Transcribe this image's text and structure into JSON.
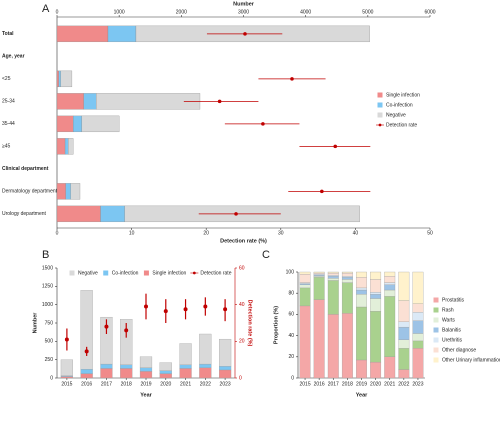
{
  "chart_data": [
    {
      "type": "hbar",
      "panel_label": "A",
      "legend": "right",
      "xlabel": "Number",
      "xlim": [
        0,
        6000
      ],
      "xticks": [
        0,
        1000,
        2000,
        3000,
        4000,
        5000,
        6000
      ],
      "x2label": "Detection rate (%)",
      "x2lim": [
        0,
        50
      ],
      "x2ticks": [
        0,
        10,
        20,
        30,
        40,
        50
      ],
      "categories": [
        "Total",
        "Age, year",
        "<25",
        "25-34",
        "35-44",
        "≥45",
        "Clinical department",
        "Dermatology department",
        "Urology department"
      ],
      "series": [
        {
          "name": "Single infection",
          "color": "#f08a8a",
          "values": [
            820,
            null,
            30,
            430,
            260,
            130,
            null,
            140,
            700
          ]
        },
        {
          "name": "Co-infection",
          "color": "#7cc6f2",
          "values": [
            450,
            null,
            30,
            200,
            140,
            50,
            null,
            80,
            390
          ]
        },
        {
          "name": "Negative",
          "color": "#d9d9d9",
          "values": [
            3760,
            null,
            180,
            1670,
            600,
            80,
            null,
            150,
            3780
          ]
        },
        {
          "name": "Detection rate",
          "type": "errorbar",
          "axis": "x2",
          "color": "#c00000",
          "values": [
            25.2,
            null,
            31.5,
            21.8,
            27.6,
            37.3,
            null,
            35.5,
            24
          ],
          "lower": [
            20.1,
            null,
            27,
            17,
            22.5,
            32.5,
            null,
            31,
            19
          ],
          "upper": [
            30.2,
            null,
            36,
            27,
            32.5,
            42,
            null,
            42,
            30
          ]
        }
      ]
    },
    {
      "type": "bar",
      "panel_label": "B",
      "legend": "top",
      "stack_reversed": true,
      "xlabel": "Year",
      "ylabel": "Number",
      "ylim": [
        0,
        1500
      ],
      "yticks": [
        0,
        250,
        500,
        750,
        1000,
        1250,
        1500
      ],
      "y2label": "Detection rate (%)",
      "y2lim": [
        0,
        60
      ],
      "y2ticks": [
        0,
        20,
        40,
        60
      ],
      "categories": [
        "2015",
        "2016",
        "2017",
        "2018",
        "2019",
        "2020",
        "2021",
        "2022",
        "2023"
      ],
      "series": [
        {
          "name": "Negative",
          "color": "#d9d9d9",
          "values": [
            220,
            1075,
            640,
            620,
            150,
            110,
            290,
            410,
            370
          ]
        },
        {
          "name": "Co-infection",
          "color": "#7cc6f2",
          "values": [
            10,
            60,
            60,
            50,
            50,
            40,
            50,
            50,
            50
          ]
        },
        {
          "name": "Single infection",
          "color": "#f08a8a",
          "values": [
            20,
            60,
            130,
            130,
            90,
            60,
            130,
            140,
            110
          ]
        },
        {
          "name": "Detection rate",
          "type": "errorbar",
          "axis": "y2",
          "color": "#c00000",
          "values": [
            21,
            14.5,
            28,
            26,
            39,
            36.5,
            37.5,
            39,
            37.5
          ],
          "lower": [
            15,
            12,
            24,
            22,
            32,
            30,
            32,
            34,
            31
          ],
          "upper": [
            27,
            17,
            32,
            30,
            46,
            43,
            43,
            44,
            43
          ]
        }
      ]
    },
    {
      "type": "bar",
      "panel_label": "C",
      "legend": "right",
      "xlabel": "Year",
      "ylabel": "Proportion (%)",
      "ylim": [
        0,
        100
      ],
      "yticks": [
        0,
        20,
        40,
        60,
        80,
        100
      ],
      "categories": [
        "2015",
        "2016",
        "2017",
        "2018",
        "2019",
        "2020",
        "2021",
        "2022",
        "2023"
      ],
      "series": [
        {
          "name": "Prostatitis",
          "color": "#f4a7a7",
          "values": [
            68,
            74,
            60,
            61,
            17,
            15,
            20,
            8,
            28
          ]
        },
        {
          "name": "Rash",
          "color": "#a9d18e",
          "values": [
            17,
            21,
            32,
            29,
            50,
            48,
            57,
            20,
            7
          ]
        },
        {
          "name": "Warts",
          "color": "#e2efd9",
          "values": [
            3,
            1,
            2,
            3,
            12,
            12,
            6,
            8,
            7
          ]
        },
        {
          "name": "Balanitis",
          "color": "#9dc3e6",
          "values": [
            1,
            1,
            2,
            2,
            4,
            4,
            5,
            12,
            12
          ]
        },
        {
          "name": "Urethritis",
          "color": "#dbe9f6",
          "values": [
            1,
            1,
            1,
            1,
            2,
            2,
            2,
            5,
            8
          ]
        },
        {
          "name": "Other diagnose",
          "color": "#fbe0d4",
          "values": [
            8,
            1,
            2,
            3,
            10,
            12,
            6,
            20,
            8
          ]
        },
        {
          "name": "Other Urinary inflammation",
          "color": "#fff2cc",
          "values": [
            2,
            1,
            1,
            1,
            5,
            7,
            4,
            27,
            30
          ]
        }
      ]
    }
  ]
}
